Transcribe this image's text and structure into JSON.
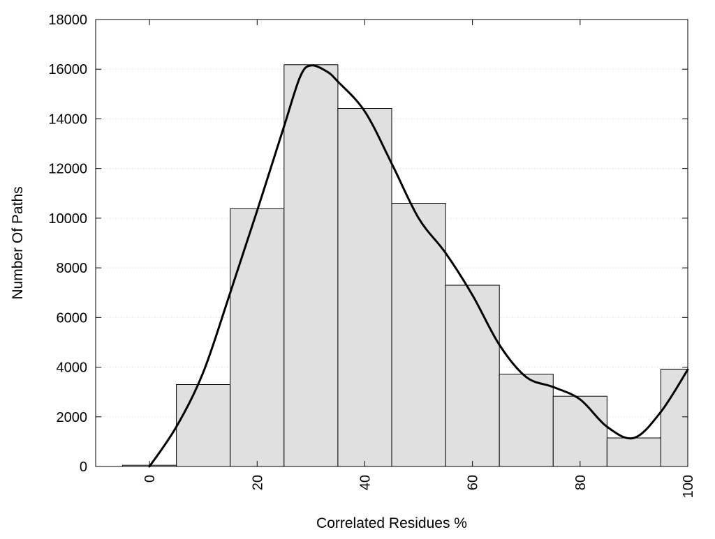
{
  "chart_data": {
    "type": "bar",
    "title": "",
    "xlabel": "Correlated Residues %",
    "ylabel": "Number Of Paths",
    "xlim": [
      -10,
      100
    ],
    "ylim": [
      0,
      18000
    ],
    "x_ticks": [
      0,
      20,
      40,
      60,
      80,
      100
    ],
    "y_ticks": [
      0,
      2000,
      4000,
      6000,
      8000,
      10000,
      12000,
      14000,
      16000,
      18000
    ],
    "grid": "horizontal dotted",
    "bins": [
      {
        "center": 0,
        "value": 50
      },
      {
        "center": 10,
        "value": 3300
      },
      {
        "center": 20,
        "value": 10380
      },
      {
        "center": 30,
        "value": 16180
      },
      {
        "center": 40,
        "value": 14420
      },
      {
        "center": 50,
        "value": 10600
      },
      {
        "center": 60,
        "value": 7300
      },
      {
        "center": 70,
        "value": 3720
      },
      {
        "center": 80,
        "value": 2830
      },
      {
        "center": 90,
        "value": 1150
      },
      {
        "center": 100,
        "value": 3920
      }
    ],
    "bin_width": 10,
    "density_curve": {
      "x": [
        0,
        5,
        10,
        15,
        20,
        25,
        28,
        30,
        33,
        35,
        40,
        45,
        50,
        55,
        60,
        65,
        70,
        75,
        80,
        85,
        90,
        95,
        100
      ],
      "y": [
        0,
        1600,
        3800,
        7000,
        10300,
        13700,
        15700,
        16150,
        15900,
        15500,
        14300,
        12200,
        10000,
        8600,
        6900,
        4900,
        3600,
        3200,
        2700,
        1600,
        1150,
        2200,
        3900
      ]
    },
    "colors": {
      "bar_fill": "#e0e0e0",
      "bar_stroke": "#000000",
      "curve": "#000000",
      "grid": "#cfcfcf"
    }
  }
}
